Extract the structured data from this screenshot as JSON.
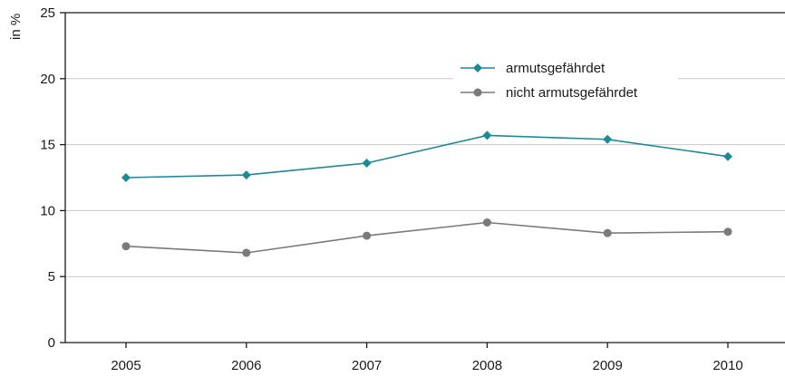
{
  "chart_data": {
    "type": "line",
    "ylabel": "in %",
    "ylim": [
      0,
      25
    ],
    "yticks": [
      0,
      5,
      10,
      15,
      20,
      25
    ],
    "categories": [
      "2005",
      "2006",
      "2007",
      "2008",
      "2009",
      "2010"
    ],
    "grid": true,
    "legend_position": "top-right",
    "series": [
      {
        "name": "armutsgefährdet",
        "color": "#1a8a9a",
        "marker": "diamond",
        "values": [
          12.5,
          12.7,
          13.6,
          15.7,
          15.4,
          14.1
        ]
      },
      {
        "name": "nicht armutsgefährdet",
        "color": "#7a7a7a",
        "marker": "circle",
        "values": [
          7.3,
          6.8,
          8.1,
          9.1,
          8.3,
          8.4
        ]
      }
    ]
  }
}
